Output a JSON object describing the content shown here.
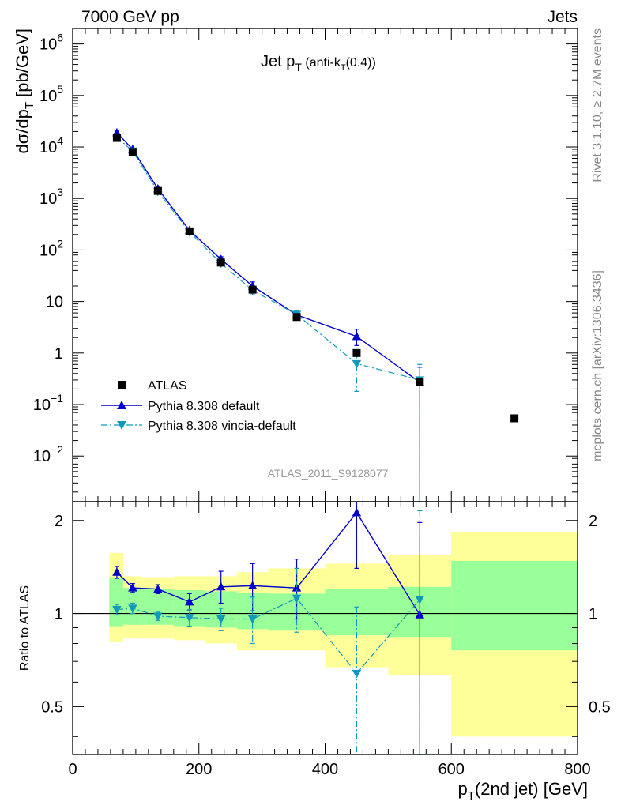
{
  "header": {
    "left": "7000 GeV pp",
    "right": "Jets"
  },
  "side_labels": {
    "rivet": "Rivet 3.1.10, ≥ 2.7M events",
    "mcplots": "mcplots.cern.ch [arXiv:1306.3436]"
  },
  "chart_data": [
    {
      "type": "scatter",
      "title_main": "Jet p",
      "title_sub": "T",
      "title_tail": " (anti-k",
      "title_tail_sub": "T",
      "title_tail_end": "(0.4))",
      "ylabel_main": "dσ/dp",
      "ylabel_sub": "T",
      "ylabel_tail": " [pb/GeV]",
      "yscale": "log",
      "xlim": [
        0,
        800
      ],
      "ylim": [
        0.0013,
        2000000
      ],
      "yticks": [
        {
          "v": 1000000,
          "base": "10",
          "exp": "6"
        },
        {
          "v": 100000,
          "base": "10",
          "exp": "5"
        },
        {
          "v": 10000,
          "base": "10",
          "exp": "4"
        },
        {
          "v": 1000,
          "base": "10",
          "exp": "3"
        },
        {
          "v": 100,
          "base": "10",
          "exp": "2"
        },
        {
          "v": 10,
          "base": "10",
          "exp": ""
        },
        {
          "v": 1,
          "base": "1",
          "exp": ""
        },
        {
          "v": 0.1,
          "base": "10",
          "exp": "−1"
        },
        {
          "v": 0.01,
          "base": "10",
          "exp": "−2"
        }
      ],
      "watermark": "ATLAS_2011_S9128077",
      "legend_position": "lower-left",
      "series": [
        {
          "name": "ATLAS",
          "marker": "square",
          "color": "#000000",
          "points": [
            {
              "x": 70,
              "y": 15000
            },
            {
              "x": 95,
              "y": 8000
            },
            {
              "x": 135,
              "y": 1400
            },
            {
              "x": 185,
              "y": 230
            },
            {
              "x": 235,
              "y": 57
            },
            {
              "x": 285,
              "y": 17
            },
            {
              "x": 355,
              "y": 5.0
            },
            {
              "x": 450,
              "y": 1.0
            },
            {
              "x": 550,
              "y": 0.27
            },
            {
              "x": 700,
              "y": 0.054
            }
          ]
        },
        {
          "name": "Pythia 8.308 default",
          "marker": "triangle-up",
          "line": "solid",
          "color": "#0000cc",
          "points": [
            {
              "x": 70,
              "y": 19000,
              "lo": 17500,
              "hi": 20500
            },
            {
              "x": 95,
              "y": 9000,
              "lo": 8500,
              "hi": 9500
            },
            {
              "x": 135,
              "y": 1550,
              "lo": 1450,
              "hi": 1650
            },
            {
              "x": 185,
              "y": 240,
              "lo": 220,
              "hi": 260
            },
            {
              "x": 235,
              "y": 66,
              "lo": 58,
              "hi": 74
            },
            {
              "x": 285,
              "y": 20,
              "lo": 17,
              "hi": 24
            },
            {
              "x": 355,
              "y": 5.5,
              "lo": 4.5,
              "hi": 6.6
            },
            {
              "x": 450,
              "y": 2.1,
              "lo": 1.4,
              "hi": 2.9
            },
            {
              "x": 550,
              "y": 0.27,
              "lo": 0.0005,
              "hi": 0.53
            }
          ]
        },
        {
          "name": "Pythia 8.308 vincia-default",
          "marker": "triangle-down",
          "line": "dashdot",
          "color": "#1199bb",
          "points": [
            {
              "x": 70,
              "y": 15500,
              "lo": 14500,
              "hi": 16500
            },
            {
              "x": 95,
              "y": 8300,
              "lo": 7800,
              "hi": 8800
            },
            {
              "x": 135,
              "y": 1370,
              "lo": 1290,
              "hi": 1450
            },
            {
              "x": 185,
              "y": 225,
              "lo": 210,
              "hi": 240
            },
            {
              "x": 235,
              "y": 55,
              "lo": 50,
              "hi": 60
            },
            {
              "x": 285,
              "y": 16.5,
              "lo": 13.5,
              "hi": 19.5
            },
            {
              "x": 355,
              "y": 5.6,
              "lo": 4.6,
              "hi": 6.6
            },
            {
              "x": 450,
              "y": 0.62,
              "lo": 0.18,
              "hi": 1.05
            },
            {
              "x": 550,
              "y": 0.3,
              "lo": 0.0005,
              "hi": 0.6
            }
          ]
        }
      ]
    },
    {
      "type": "scatter",
      "ylabel": "Ratio to ATLAS",
      "xlabel_main": "p",
      "xlabel_sub": "T",
      "xlabel_tail": "(2nd jet) [GeV]",
      "yscale": "log",
      "xlim": [
        0,
        800
      ],
      "ylim": [
        0.35,
        2.3
      ],
      "xticks": [
        0,
        200,
        400,
        600,
        800
      ],
      "yticks": [
        {
          "v": 0.5,
          "label": "0.5"
        },
        {
          "v": 1,
          "label": "1"
        },
        {
          "v": 2,
          "label": "2"
        }
      ],
      "reference_line": 1,
      "bands": [
        {
          "x0": 58,
          "x1": 80,
          "yellow": [
            0.81,
            1.57
          ],
          "green": [
            0.91,
            1.31
          ]
        },
        {
          "x0": 80,
          "x1": 110,
          "yellow": [
            0.83,
            1.32
          ],
          "green": [
            0.92,
            1.21
          ]
        },
        {
          "x0": 110,
          "x1": 160,
          "yellow": [
            0.83,
            1.31
          ],
          "green": [
            0.92,
            1.2
          ]
        },
        {
          "x0": 160,
          "x1": 210,
          "yellow": [
            0.82,
            1.32
          ],
          "green": [
            0.91,
            1.19
          ]
        },
        {
          "x0": 210,
          "x1": 260,
          "yellow": [
            0.8,
            1.32
          ],
          "green": [
            0.9,
            1.18
          ]
        },
        {
          "x0": 260,
          "x1": 310,
          "yellow": [
            0.76,
            1.36
          ],
          "green": [
            0.89,
            1.17
          ]
        },
        {
          "x0": 310,
          "x1": 400,
          "yellow": [
            0.76,
            1.4
          ],
          "green": [
            0.88,
            1.16
          ]
        },
        {
          "x0": 400,
          "x1": 500,
          "yellow": [
            0.67,
            1.45
          ],
          "green": [
            0.85,
            1.2
          ]
        },
        {
          "x0": 500,
          "x1": 600,
          "yellow": [
            0.63,
            1.55
          ],
          "green": [
            0.84,
            1.22
          ]
        },
        {
          "x0": 600,
          "x1": 800,
          "yellow": [
            0.4,
            1.83
          ],
          "green": [
            0.76,
            1.48
          ]
        }
      ],
      "series": [
        {
          "name": "Pythia 8.308 default",
          "marker": "triangle-up",
          "line": "solid",
          "color": "#0000cc",
          "points": [
            {
              "x": 70,
              "y": 1.36,
              "lo": 1.3,
              "hi": 1.42
            },
            {
              "x": 95,
              "y": 1.21,
              "lo": 1.17,
              "hi": 1.25
            },
            {
              "x": 135,
              "y": 1.2,
              "lo": 1.16,
              "hi": 1.24
            },
            {
              "x": 185,
              "y": 1.09,
              "lo": 1.02,
              "hi": 1.16
            },
            {
              "x": 235,
              "y": 1.22,
              "lo": 1.08,
              "hi": 1.37
            },
            {
              "x": 285,
              "y": 1.23,
              "lo": 1.02,
              "hi": 1.45
            },
            {
              "x": 355,
              "y": 1.21,
              "lo": 0.96,
              "hi": 1.5
            },
            {
              "x": 450,
              "y": 2.12,
              "lo": 1.4,
              "hi": 2.85
            },
            {
              "x": 550,
              "y": 0.99,
              "lo": 0.3,
              "hi": 1.97
            }
          ]
        },
        {
          "name": "Pythia 8.308 vincia-default",
          "marker": "triangle-down",
          "line": "dashdot",
          "color": "#1199bb",
          "points": [
            {
              "x": 70,
              "y": 1.03,
              "lo": 0.99,
              "hi": 1.07
            },
            {
              "x": 95,
              "y": 1.04,
              "lo": 1.0,
              "hi": 1.08
            },
            {
              "x": 135,
              "y": 0.98,
              "lo": 0.95,
              "hi": 1.01
            },
            {
              "x": 185,
              "y": 0.97,
              "lo": 0.91,
              "hi": 1.03
            },
            {
              "x": 235,
              "y": 0.96,
              "lo": 0.88,
              "hi": 1.04
            },
            {
              "x": 285,
              "y": 0.96,
              "lo": 0.8,
              "hi": 1.13
            },
            {
              "x": 355,
              "y": 1.12,
              "lo": 0.87,
              "hi": 1.4
            },
            {
              "x": 450,
              "y": 0.64,
              "lo": 0.25,
              "hi": 1.05
            },
            {
              "x": 550,
              "y": 1.11,
              "lo": 0.3,
              "hi": 2.15
            }
          ]
        }
      ]
    }
  ]
}
